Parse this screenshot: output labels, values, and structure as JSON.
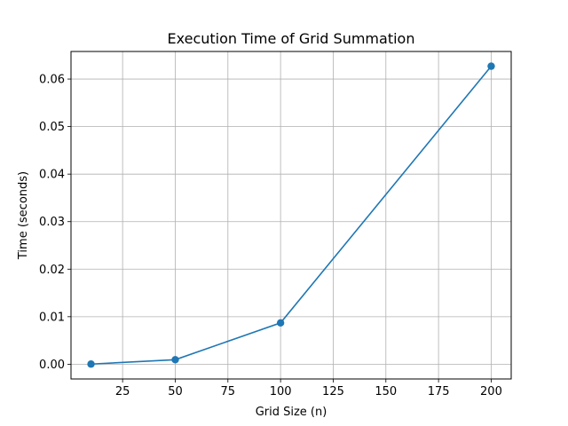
{
  "chart_data": {
    "type": "line",
    "title": "Execution Time of Grid Summation",
    "xlabel": "Grid Size (n)",
    "ylabel": "Time (seconds)",
    "x": [
      10,
      50,
      100,
      200
    ],
    "series": [
      {
        "values": [
          3e-05,
          0.00095,
          0.0087,
          0.0627
        ]
      }
    ],
    "xlim": [
      0.5,
      209.5
    ],
    "ylim": [
      -0.0031,
      0.0658
    ],
    "xticks": [
      25,
      50,
      75,
      100,
      125,
      150,
      175,
      200
    ],
    "xtick_labels": [
      "25",
      "50",
      "75",
      "100",
      "125",
      "150",
      "175",
      "200"
    ],
    "yticks": [
      0.0,
      0.01,
      0.02,
      0.03,
      0.04,
      0.05,
      0.06
    ],
    "ytick_labels": [
      "0.00",
      "0.01",
      "0.02",
      "0.03",
      "0.04",
      "0.05",
      "0.06"
    ],
    "grid": true,
    "marker": "circle",
    "color": "#1f77b4"
  }
}
